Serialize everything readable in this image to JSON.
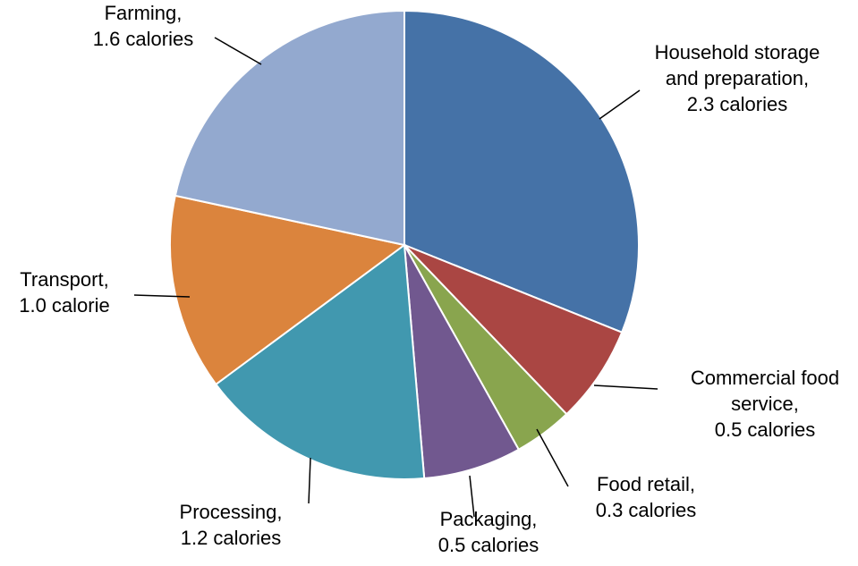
{
  "chart_data": {
    "type": "pie",
    "title": "",
    "unit": "calories",
    "slices": [
      {
        "name": "Household storage and preparation",
        "value": 2.3,
        "color": "#4572A7",
        "label_lines": [
          "Household storage",
          "and preparation,",
          "2.3 calories"
        ]
      },
      {
        "name": "Commercial food service",
        "value": 0.5,
        "color": "#AA4643",
        "label_lines": [
          "Commercial food",
          "service,",
          "0.5 calories"
        ]
      },
      {
        "name": "Food retail",
        "value": 0.3,
        "color": "#89A54E",
        "label_lines": [
          "Food retail,",
          "0.3 calories"
        ]
      },
      {
        "name": "Packaging",
        "value": 0.5,
        "color": "#71588F",
        "label_lines": [
          "Packaging,",
          "0.5 calories"
        ]
      },
      {
        "name": "Processing",
        "value": 1.2,
        "color": "#4198AF",
        "label_lines": [
          "Processing,",
          "1.2 calories"
        ]
      },
      {
        "name": "Transport",
        "value": 1.0,
        "color": "#DB843D",
        "label_lines": [
          "Transport,",
          "1.0 calorie"
        ]
      },
      {
        "name": "Farming",
        "value": 1.6,
        "color": "#93A9CF",
        "label_lines": [
          "Farming,",
          "1.6 calories"
        ]
      }
    ]
  }
}
